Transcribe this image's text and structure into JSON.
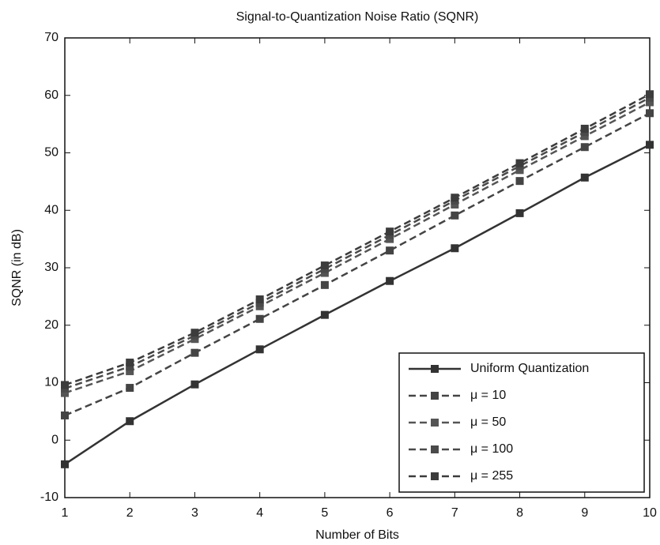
{
  "chart_data": {
    "type": "line",
    "title": "Signal-to-Quantization Noise Ratio (SQNR)",
    "x_label": "Number of Bits",
    "y_label": "SQNR (in dB)",
    "x": [
      1,
      2,
      3,
      4,
      5,
      6,
      7,
      8,
      9,
      10
    ],
    "xlim": [
      1,
      10
    ],
    "xticks": [
      1,
      2,
      3,
      4,
      5,
      6,
      7,
      8,
      9,
      10
    ],
    "ylim": [
      -10,
      70
    ],
    "yticks": [
      -10,
      0,
      10,
      20,
      30,
      40,
      50,
      60,
      70
    ],
    "legend": "lower right",
    "series": [
      {
        "name": "Uniform Quantization",
        "color": "#333333",
        "linestyle": "solid",
        "values": [
          -4.2,
          3.3,
          9.7,
          15.8,
          21.8,
          27.7,
          33.4,
          39.5,
          45.7,
          51.4
        ]
      },
      {
        "name": "μ = 10",
        "color": "#444444",
        "linestyle": "dashed",
        "values": [
          4.3,
          9.1,
          15.2,
          21.1,
          27.0,
          33.0,
          39.1,
          45.1,
          51.0,
          56.9
        ]
      },
      {
        "name": "μ = 50",
        "color": "#555555",
        "linestyle": "dashed",
        "values": [
          8.2,
          12.0,
          17.6,
          23.3,
          29.1,
          35.0,
          41.0,
          47.0,
          52.9,
          58.8
        ]
      },
      {
        "name": "μ = 100",
        "color": "#4a4a4a",
        "linestyle": "dashed",
        "values": [
          9.0,
          12.8,
          18.2,
          23.9,
          29.8,
          35.7,
          41.7,
          47.7,
          53.6,
          59.6
        ]
      },
      {
        "name": "μ = 255",
        "color": "#3c3c3c",
        "linestyle": "dashed",
        "values": [
          9.6,
          13.5,
          18.7,
          24.5,
          30.4,
          36.3,
          42.2,
          48.2,
          54.2,
          60.2
        ]
      }
    ]
  }
}
